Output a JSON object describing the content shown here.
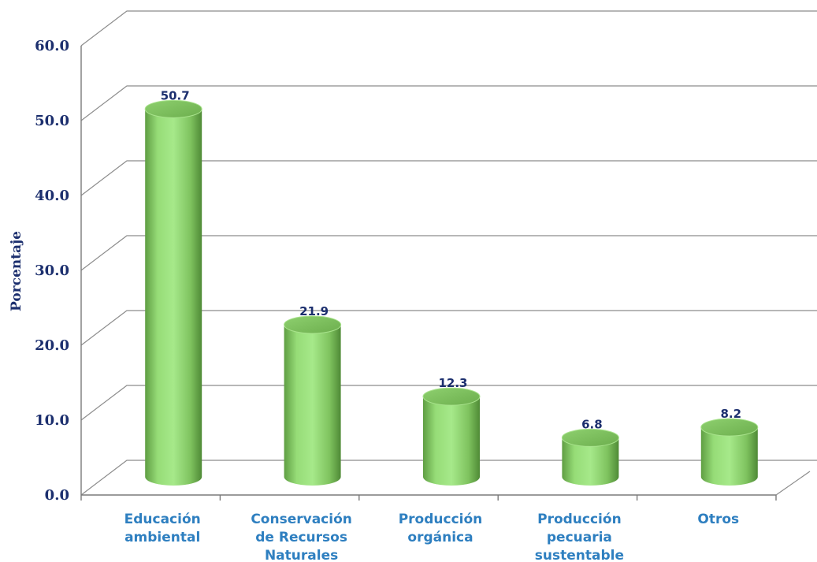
{
  "chart_data": {
    "type": "bar",
    "style": "3d-cylinder",
    "title": "",
    "xlabel": "",
    "ylabel": "Porcentaje",
    "ylim": [
      0,
      60
    ],
    "yticks": [
      "0.0",
      "10.0",
      "20.0",
      "30.0",
      "40.0",
      "50.0",
      "60.0"
    ],
    "grid": true,
    "legend": "none",
    "bar_color": "#8fd66f",
    "categories": [
      [
        "Educación",
        "ambiental"
      ],
      [
        "Conservación",
        "de Recursos",
        "Naturales"
      ],
      [
        "Producción",
        "orgánica"
      ],
      [
        "Producción",
        "pecuaria",
        "sustentable"
      ],
      [
        "Otros"
      ]
    ],
    "values": [
      50.7,
      21.9,
      12.3,
      6.8,
      8.2
    ],
    "data_labels": [
      "50.7",
      "21.9",
      "12.3",
      "6.8",
      "8.2"
    ]
  }
}
